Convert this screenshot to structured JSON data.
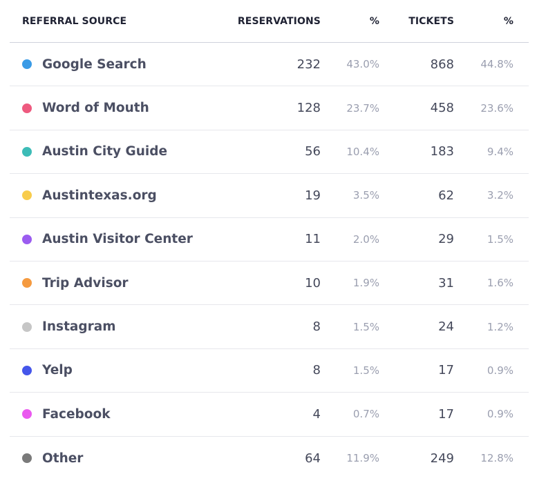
{
  "header": {
    "source": "REFERRAL SOURCE",
    "reservations": "RESERVATIONS",
    "reservations_pct": "%",
    "tickets": "TICKETS",
    "tickets_pct": "%"
  },
  "rows": [
    {
      "source": "Google Search",
      "color": "#3a9be6",
      "reservations": "232",
      "reservations_pct": "43.0%",
      "tickets": "868",
      "tickets_pct": "44.8%"
    },
    {
      "source": "Word of Mouth",
      "color": "#ee5a7f",
      "reservations": "128",
      "reservations_pct": "23.7%",
      "tickets": "458",
      "tickets_pct": "23.6%"
    },
    {
      "source": "Austin City Guide",
      "color": "#3dbcb7",
      "reservations": "56",
      "reservations_pct": "10.4%",
      "tickets": "183",
      "tickets_pct": "9.4%"
    },
    {
      "source": "Austintexas.org",
      "color": "#f8cc4c",
      "reservations": "19",
      "reservations_pct": "3.5%",
      "tickets": "62",
      "tickets_pct": "3.2%"
    },
    {
      "source": "Austin Visitor Center",
      "color": "#9b5cf0",
      "reservations": "11",
      "reservations_pct": "2.0%",
      "tickets": "29",
      "tickets_pct": "1.5%"
    },
    {
      "source": "Trip Advisor",
      "color": "#f59a3f",
      "reservations": "10",
      "reservations_pct": "1.9%",
      "tickets": "31",
      "tickets_pct": "1.6%"
    },
    {
      "source": "Instagram",
      "color": "#c6c6c6",
      "reservations": "8",
      "reservations_pct": "1.5%",
      "tickets": "24",
      "tickets_pct": "1.2%"
    },
    {
      "source": "Yelp",
      "color": "#4556ea",
      "reservations": "8",
      "reservations_pct": "1.5%",
      "tickets": "17",
      "tickets_pct": "0.9%"
    },
    {
      "source": "Facebook",
      "color": "#ea59ef",
      "reservations": "4",
      "reservations_pct": "0.7%",
      "tickets": "17",
      "tickets_pct": "0.9%"
    },
    {
      "source": "Other",
      "color": "#7a7a7a",
      "reservations": "64",
      "reservations_pct": "11.9%",
      "tickets": "249",
      "tickets_pct": "12.8%"
    }
  ]
}
